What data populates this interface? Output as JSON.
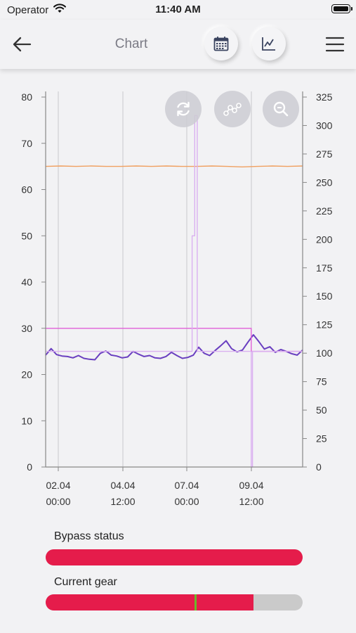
{
  "status_bar": {
    "carrier": "Operator",
    "time": "11:40 AM"
  },
  "nav": {
    "title": "Chart",
    "buttons": [
      "back-arrow-icon",
      "calendar-icon",
      "line-chart-icon",
      "hamburger-menu-icon"
    ]
  },
  "chart_toolbar": [
    "refresh-icon",
    "nodes-icon",
    "zoom-icon"
  ],
  "chart_data": {
    "type": "line",
    "x_ticks": [
      {
        "line1": "02.04",
        "line2": "00:00"
      },
      {
        "line1": "04.04",
        "line2": "12:00"
      },
      {
        "line1": "07.04",
        "line2": "00:00"
      },
      {
        "line1": "09.04",
        "line2": "12:00"
      }
    ],
    "left_axis": {
      "ylim": [
        0,
        80
      ],
      "ticks": [
        "0",
        "10",
        "20",
        "30",
        "40",
        "50",
        "60",
        "70",
        "80"
      ]
    },
    "right_axis": {
      "ylim": [
        0,
        325
      ],
      "ticks": [
        "0",
        "25",
        "50",
        "75",
        "100",
        "125",
        "150",
        "175",
        "200",
        "225",
        "250",
        "275",
        "300",
        "325"
      ]
    },
    "grid": "vertical",
    "series": [
      {
        "color": "#f0a060",
        "axis": "left",
        "values": [
          65,
          65.1,
          65,
          65.1,
          65,
          65,
          65.1,
          65,
          65.1,
          65,
          65,
          65.1,
          65,
          64.9,
          65,
          65.1,
          65,
          65.1
        ]
      },
      {
        "color": "#6a3fc0",
        "axis": "left",
        "values": [
          24.2,
          25.6,
          24.3,
          24.0,
          23.9,
          23.6,
          24.1,
          23.5,
          23.3,
          23.2,
          24.6,
          25.1,
          24.2,
          24.0,
          23.6,
          23.8,
          25.0,
          24.4,
          23.9,
          24.1,
          23.6,
          23.5,
          23.9,
          24.8,
          24.1,
          23.5,
          23.7,
          24.2,
          25.9,
          24.6,
          24.1,
          25.2,
          26.2,
          27.3,
          25.6,
          24.9,
          25.3,
          27.0,
          28.6,
          27.1,
          25.5,
          26.0,
          24.8,
          25.4,
          25.0,
          24.5,
          24.2,
          25.3
        ]
      },
      {
        "color": "#e060d8",
        "axis": "left",
        "steps": [
          {
            "x_end": 0.8,
            "y": 30
          },
          {
            "x_end": 1.0,
            "y": 25
          }
        ]
      },
      {
        "color": "#dab0f0",
        "axis": "left",
        "steps": [
          {
            "x_end": 0.57,
            "y": 25
          },
          {
            "x_end": 0.58,
            "y": 50
          },
          {
            "x_end": 0.59,
            "y": 76
          },
          {
            "x_end": 0.8,
            "y": 25
          },
          {
            "x_end": 0.805,
            "y": 0
          },
          {
            "x_end": 1.0,
            "y": 25
          }
        ]
      }
    ]
  },
  "bypass": {
    "label": "Bypass status",
    "fill": 1.0,
    "color": "#e51c4b"
  },
  "gear": {
    "label": "Current gear",
    "fill": 0.81,
    "marker": 0.58,
    "color": "#e51c4b",
    "marker_color": "#6ab82a"
  }
}
